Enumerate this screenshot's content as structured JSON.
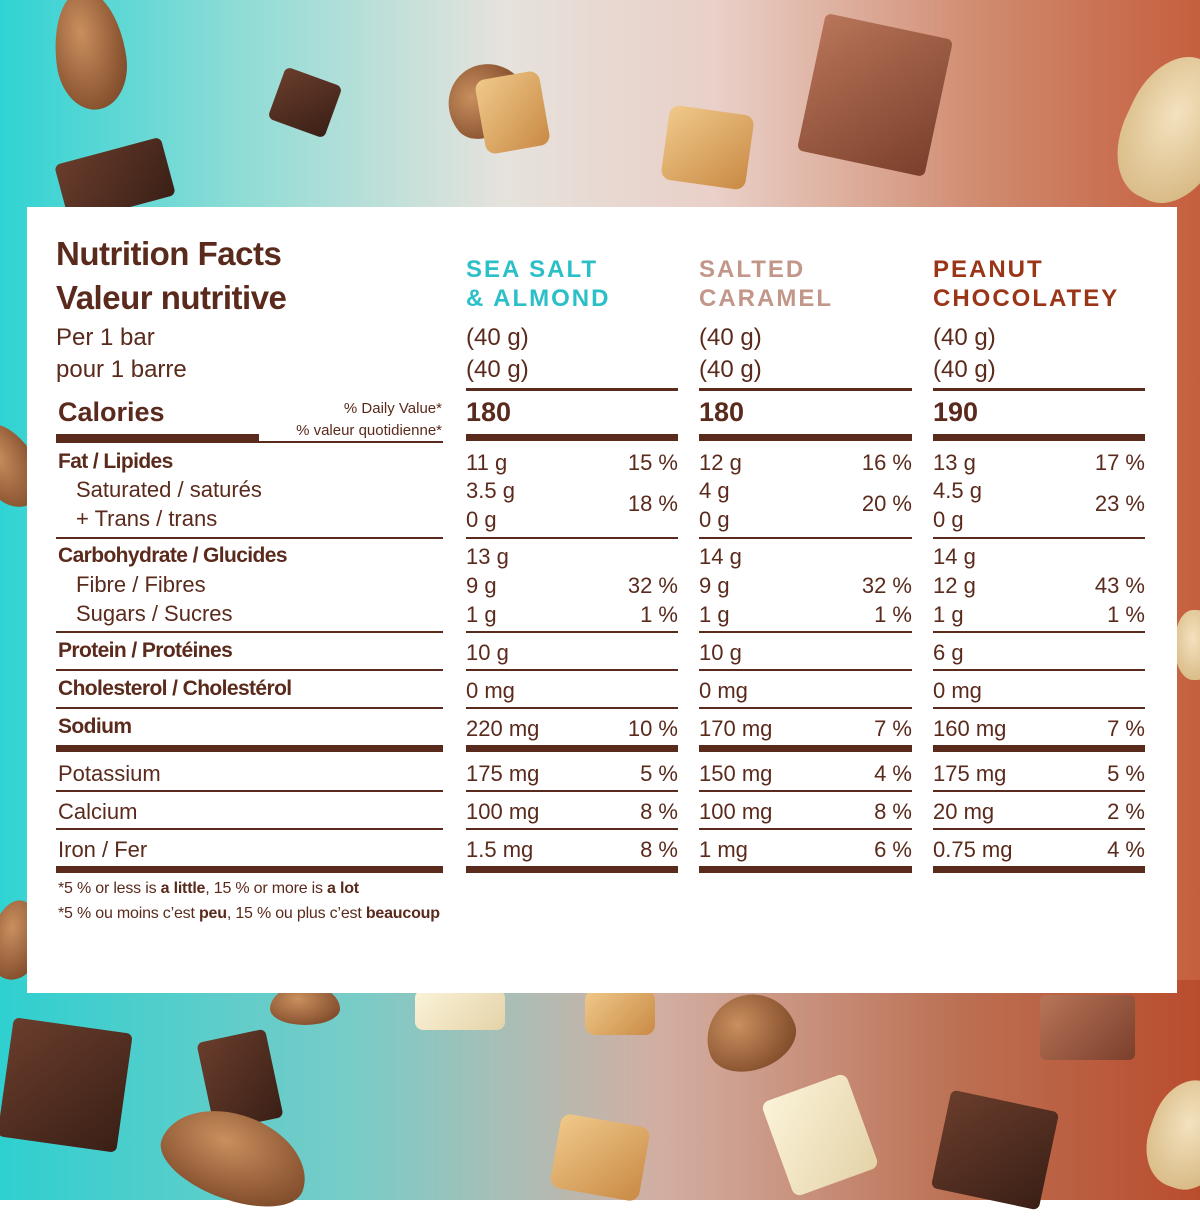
{
  "title_en": "Nutrition Facts",
  "title_fr": "Valeur nutritive",
  "per_en": "Per 1 bar",
  "per_fr": "pour 1 barre",
  "calories_label": "Calories",
  "dv_en": "% Daily Value*",
  "dv_fr": "% valeur quotidienne*",
  "labels": {
    "fat": "Fat / Lipides",
    "saturated": "Saturated / saturés",
    "trans": "+ Trans / trans",
    "carb": "Carbohydrate / Glucides",
    "fibre": "Fibre / Fibres",
    "sugars": "Sugars / Sucres",
    "protein": "Protein / Protéines",
    "cholesterol": "Cholesterol / Cholestérol",
    "sodium": "Sodium",
    "potassium": "Potassium",
    "calcium": "Calcium",
    "iron": "Iron / Fer"
  },
  "products": [
    {
      "name1": "SEA SALT",
      "name2": "& ALMOND",
      "color": "#2bc0c7",
      "serving1": "(40 g)",
      "serving2": "(40 g)",
      "calories": "180",
      "fat": "11 g",
      "fat_dv": "15 %",
      "sat": "3.5 g",
      "trans": "0 g",
      "sat_dv": "18 %",
      "carb": "13 g",
      "fibre": "9 g",
      "fibre_dv": "32 %",
      "sugars": "1 g",
      "sugars_dv": "1 %",
      "protein": "10 g",
      "cholesterol": "0 mg",
      "sodium": "220 mg",
      "sodium_dv": "10 %",
      "potassium": "175 mg",
      "potassium_dv": "5 %",
      "calcium": "100 mg",
      "calcium_dv": "8 %",
      "iron": "1.5 mg",
      "iron_dv": "8 %"
    },
    {
      "name1": "SALTED",
      "name2": "CARAMEL",
      "color": "#c2978a",
      "serving1": "(40 g)",
      "serving2": "(40 g)",
      "calories": "180",
      "fat": "12 g",
      "fat_dv": "16 %",
      "sat": "4 g",
      "trans": "0 g",
      "sat_dv": "20 %",
      "carb": "14 g",
      "fibre": "9 g",
      "fibre_dv": "32 %",
      "sugars": "1 g",
      "sugars_dv": "1 %",
      "protein": "10 g",
      "cholesterol": "0 mg",
      "sodium": "170 mg",
      "sodium_dv": "7 %",
      "potassium": "150 mg",
      "potassium_dv": "4 %",
      "calcium": "100 mg",
      "calcium_dv": "8 %",
      "iron": "1 mg",
      "iron_dv": "6 %"
    },
    {
      "name1": "PEANUT",
      "name2": "CHOCOLATEY",
      "color": "#9a3517",
      "serving1": "(40 g)",
      "serving2": "(40 g)",
      "calories": "190",
      "fat": "13 g",
      "fat_dv": "17 %",
      "sat": "4.5 g",
      "trans": "0 g",
      "sat_dv": "23 %",
      "carb": "14 g",
      "fibre": "12 g",
      "fibre_dv": "43 %",
      "sugars": "1 g",
      "sugars_dv": "1 %",
      "protein": "6 g",
      "cholesterol": "0 mg",
      "sodium": "160 mg",
      "sodium_dv": "7 %",
      "potassium": "175 mg",
      "potassium_dv": "5 %",
      "calcium": "20 mg",
      "calcium_dv": "2 %",
      "iron": "0.75 mg",
      "iron_dv": "4 %"
    }
  ],
  "footnote_en": {
    "pre": "*5 % or less is ",
    "b1": "a little",
    "mid": ", 15 % or more is ",
    "b2": "a lot"
  },
  "footnote_fr": {
    "pre": "*5 % ou moins c’est ",
    "b1": "peu",
    "mid": ", 15 % ou plus c’est ",
    "b2": "beaucoup"
  }
}
